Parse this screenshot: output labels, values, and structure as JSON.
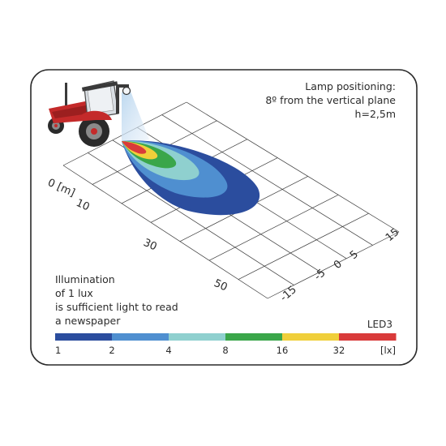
{
  "lamp_info": {
    "line1": "Lamp positioning:",
    "line2": "8º from the vertical plane",
    "line3": "h=2,5m"
  },
  "note": {
    "line1": "Illumination",
    "line2": "of 1 lux",
    "line3": "is sufficient light to read",
    "line4": "a newspaper"
  },
  "model": "LED3",
  "axis_distance": {
    "origin_label": "0 [m]",
    "ticks": [
      "10",
      "30",
      "50"
    ]
  },
  "axis_lateral": {
    "ticks": [
      "15",
      "5",
      "0",
      "-5",
      "-15"
    ]
  },
  "scale": {
    "unit": "[lx]",
    "ticks": [
      "1",
      "2",
      "4",
      "8",
      "16",
      "32"
    ],
    "colors": [
      "#2b4d9e",
      "#4f8fd0",
      "#8fd0cf",
      "#3aa64a",
      "#f0cf3a",
      "#d93a3a"
    ]
  }
}
